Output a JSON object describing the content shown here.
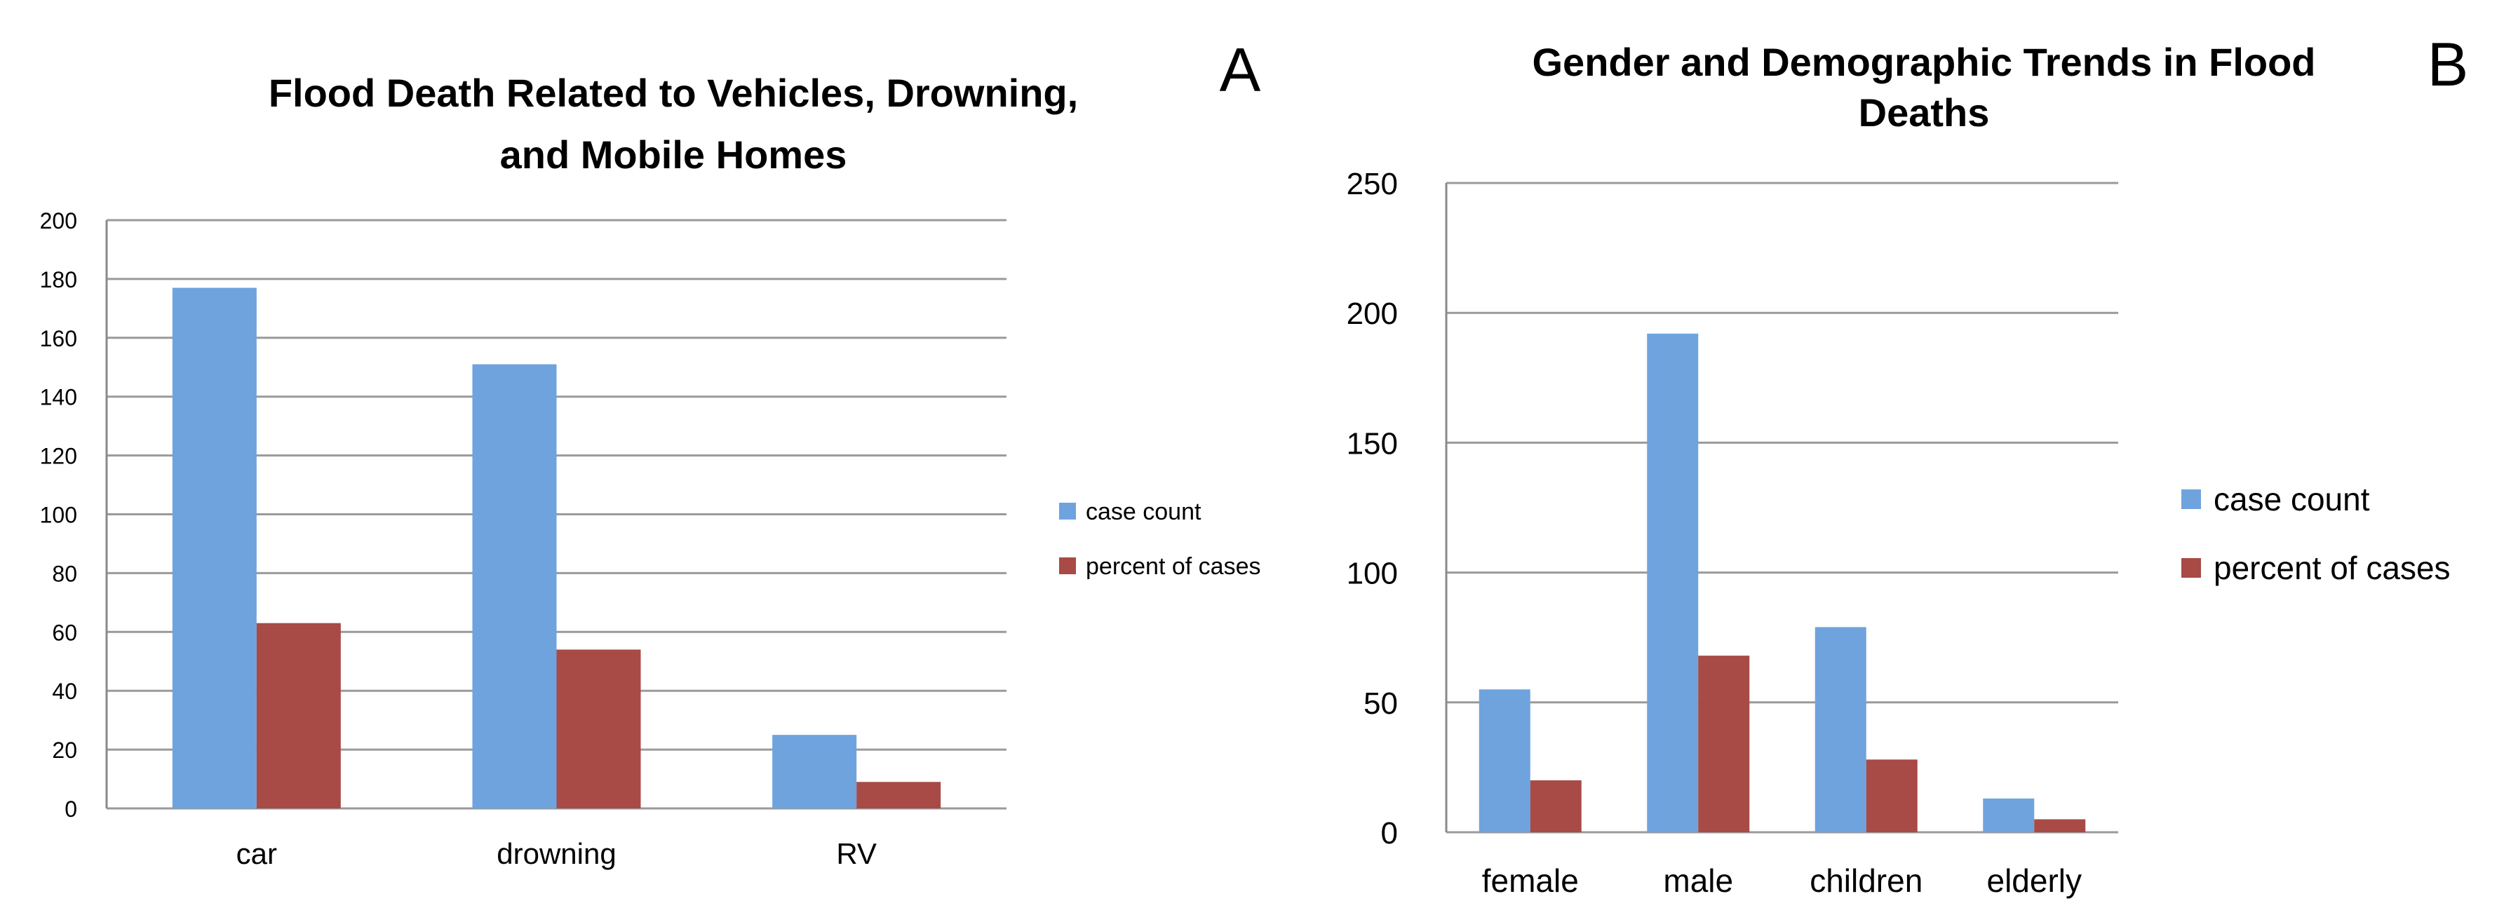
{
  "chart_data": [
    {
      "panel": "A",
      "type": "bar",
      "title": [
        "Flood Death Related to Vehicles, Drowning,",
        "and Mobile Homes"
      ],
      "categories": [
        "car",
        "drowning",
        "RV"
      ],
      "series": [
        {
          "name": "case count",
          "color": "#6ea3de",
          "values": [
            177,
            151,
            25
          ]
        },
        {
          "name": "percent of cases",
          "color": "#a84a46",
          "values": [
            63,
            54,
            9
          ]
        }
      ],
      "ylim": [
        0,
        200
      ],
      "yticks": [
        0,
        20,
        40,
        60,
        80,
        100,
        120,
        140,
        160,
        180,
        200
      ],
      "legend": "right",
      "grid": true
    },
    {
      "panel": "B",
      "type": "bar",
      "title": [
        "Gender and Demographic Trends in Flood",
        "Deaths"
      ],
      "categories": [
        "female",
        "male",
        "children",
        "elderly"
      ],
      "series": [
        {
          "name": "case count",
          "color": "#6ea3de",
          "values": [
            55,
            192,
            79,
            13
          ]
        },
        {
          "name": "percent of cases",
          "color": "#a84a46",
          "values": [
            20,
            68,
            28,
            5
          ]
        }
      ],
      "ylim": [
        0,
        250
      ],
      "yticks": [
        0,
        50,
        100,
        150,
        200,
        250
      ],
      "legend": "right",
      "grid": true
    }
  ]
}
